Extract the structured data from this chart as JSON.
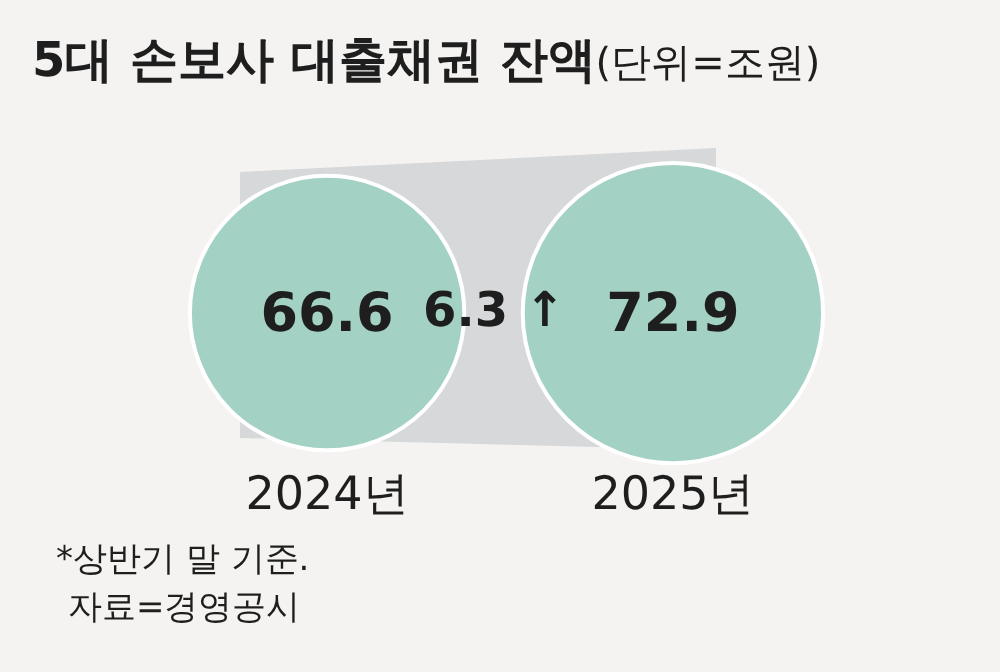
{
  "chart_data": {
    "type": "other",
    "title": "5대 손보사 대출채권 잔액",
    "subtitle": "(단위=조원)",
    "categories": [
      "2024년",
      "2025년"
    ],
    "values": [
      66.6,
      72.9
    ],
    "color": "#a3d1c3",
    "data_labels": true,
    "annotations": [
      "6.3 ↑",
      "*상반기 말 기준.",
      "자료=경영공시"
    ]
  }
}
